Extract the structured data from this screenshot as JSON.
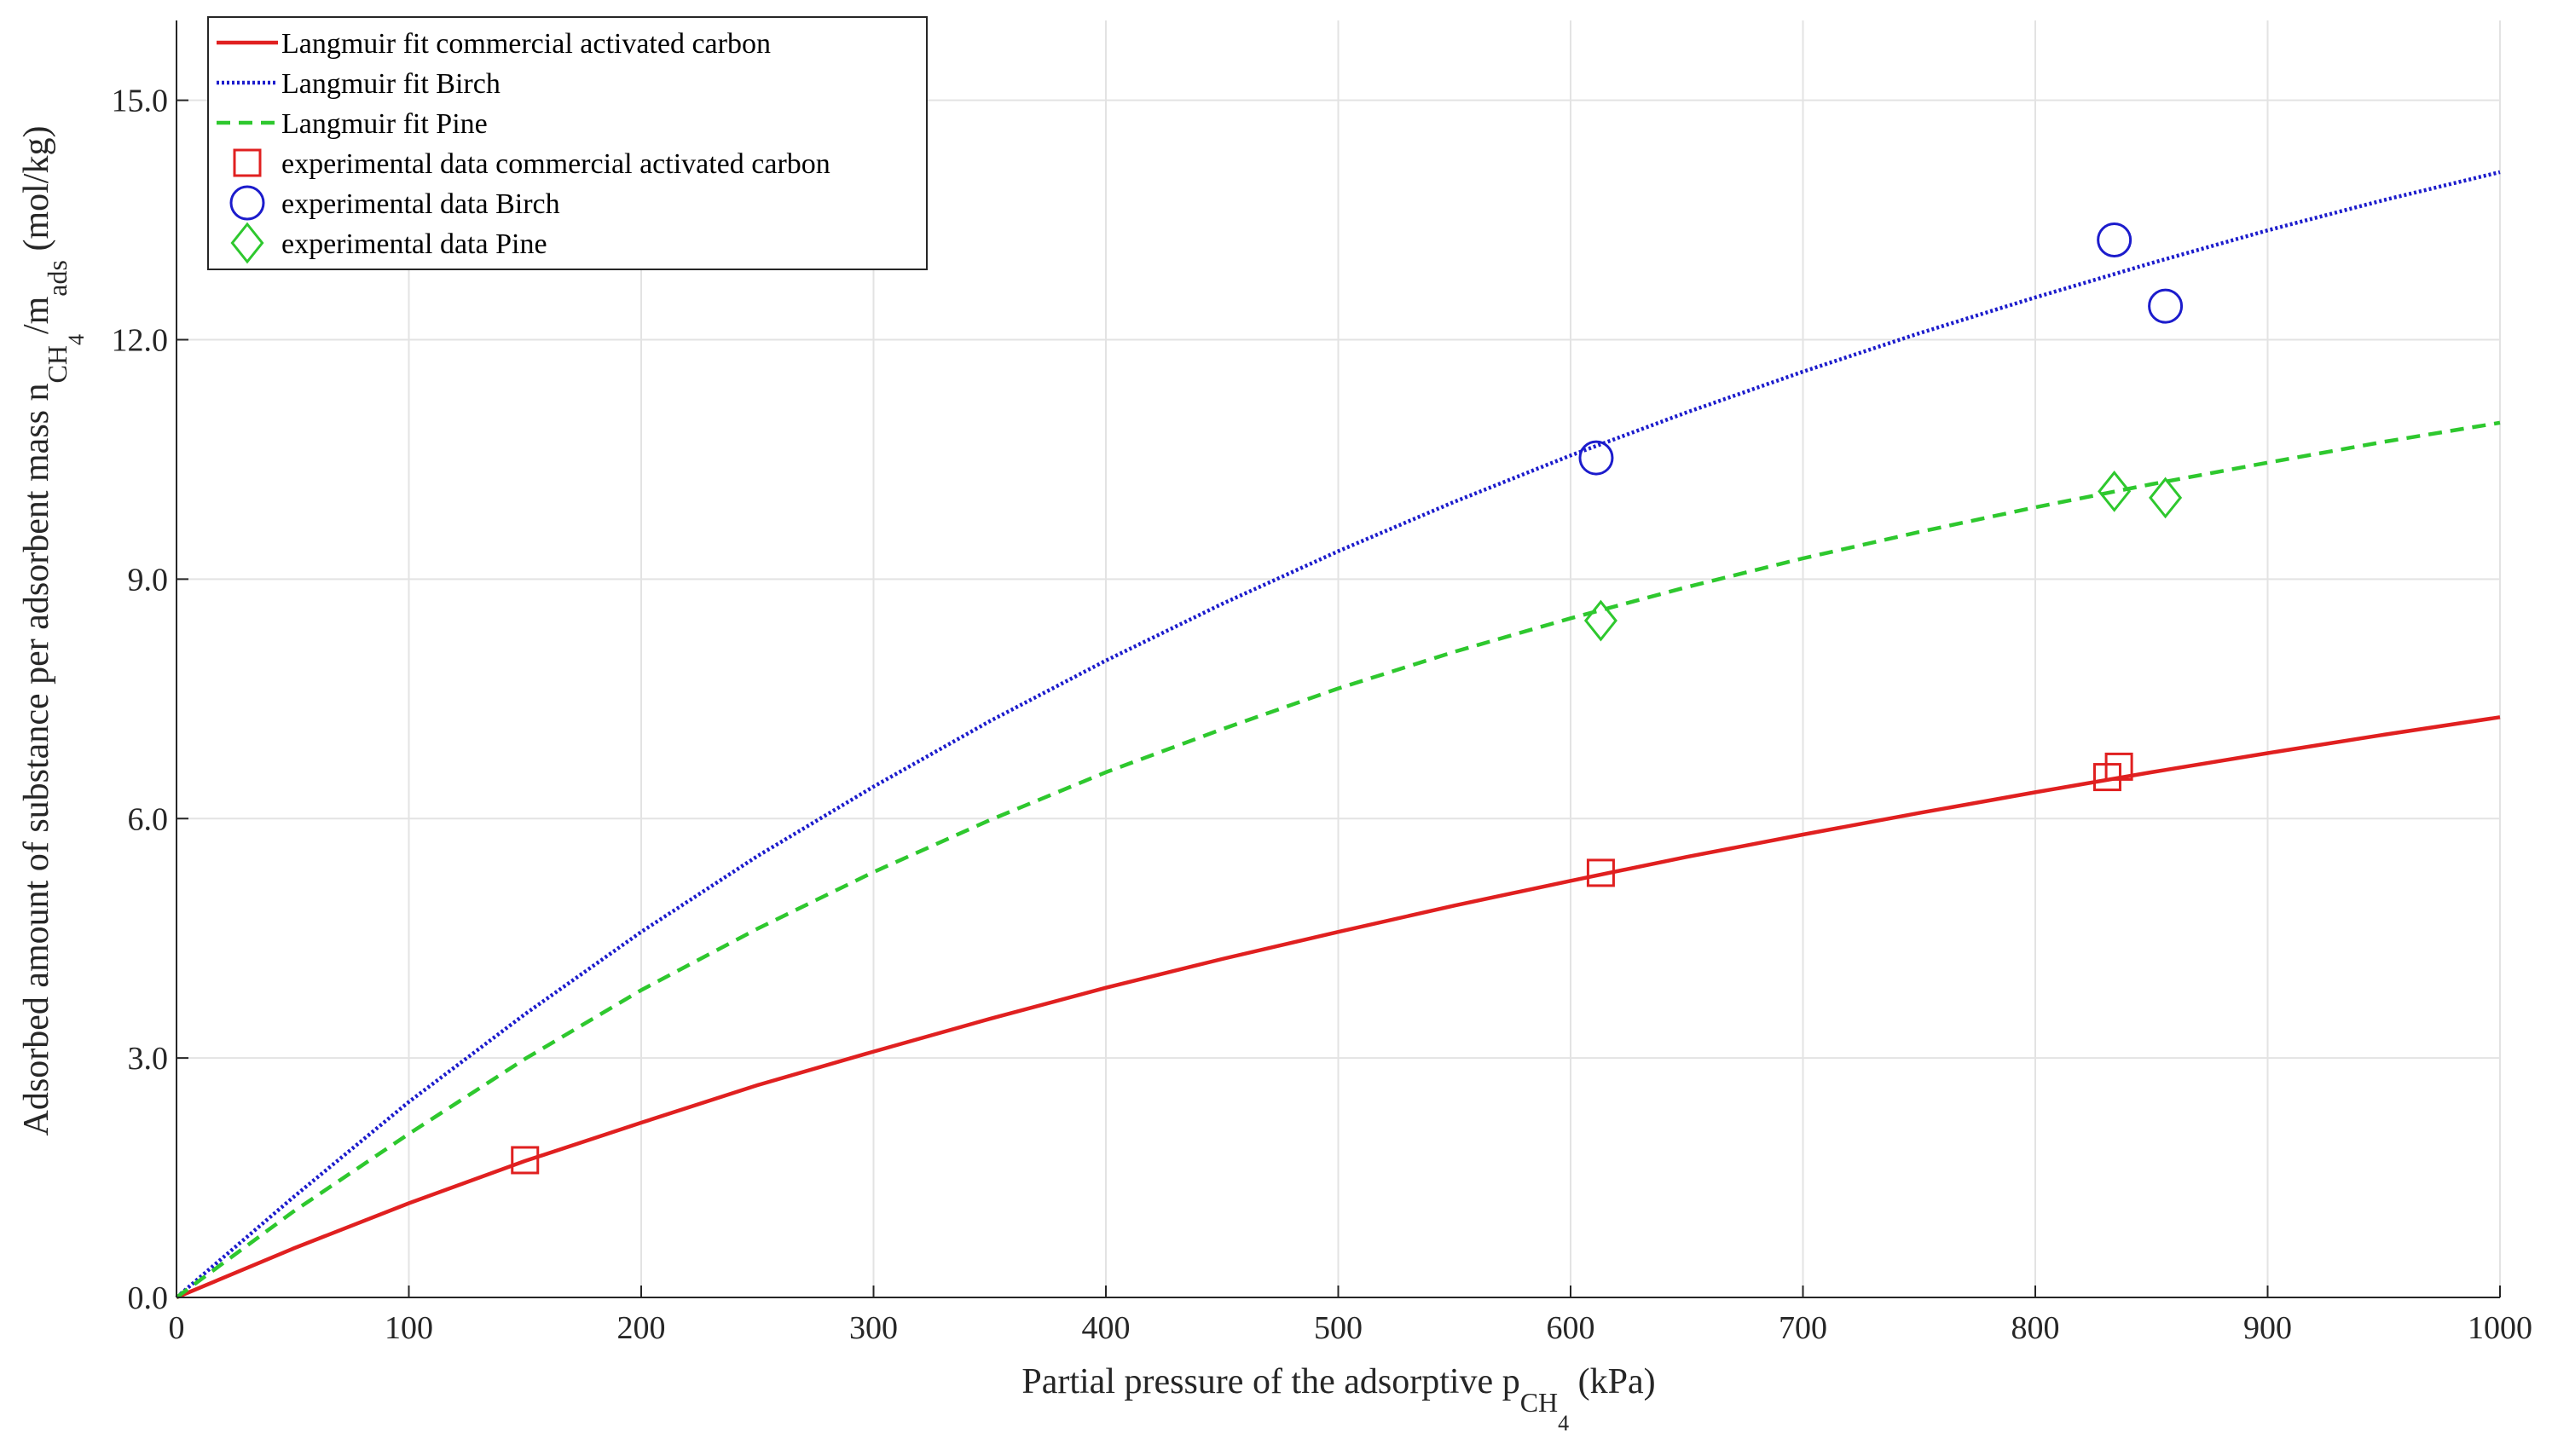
{
  "chart_data": {
    "type": "line",
    "title": "",
    "xlabel": {
      "prefix": "Partial pressure of the adsorptive p",
      "sub": "CH",
      "subsub": "4",
      "suffix": " (kPa)"
    },
    "ylabel": {
      "prefix": "Adsorbed amount of substance per adsorbent mass n",
      "sub1": "CH",
      "subsub1": "4",
      "mid": "/m",
      "sub2": "ads",
      "suffix": " (mol/kg)"
    },
    "xlim": [
      0,
      1000
    ],
    "ylim": [
      0,
      16
    ],
    "xticks": [
      0,
      100,
      200,
      300,
      400,
      500,
      600,
      700,
      800,
      900,
      1000
    ],
    "xtick_labels": [
      "0",
      "100",
      "200",
      "300",
      "400",
      "500",
      "600",
      "700",
      "800",
      "900",
      "1000"
    ],
    "yticks": [
      0,
      3,
      6,
      9,
      12,
      15
    ],
    "ytick_labels": [
      "0.0",
      "3.0",
      "6.0",
      "9.0",
      "12.0",
      "15.0"
    ],
    "grid": true,
    "legend_position": "top-left",
    "series": [
      {
        "name": "Langmuir fit commercial activated carbon",
        "kind": "line",
        "style": "solid",
        "color": "#e02020",
        "x": [
          0,
          50,
          100,
          150,
          200,
          250,
          300,
          350,
          400,
          450,
          500,
          550,
          600,
          650,
          700,
          750,
          800,
          850,
          900,
          950,
          1000
        ],
        "y": [
          0,
          0.61,
          1.18,
          1.71,
          2.19,
          2.66,
          3.08,
          3.49,
          3.88,
          4.24,
          4.58,
          4.91,
          5.22,
          5.52,
          5.8,
          6.07,
          6.33,
          6.58,
          6.82,
          7.05,
          7.27
        ]
      },
      {
        "name": "Langmuir fit Birch",
        "kind": "line",
        "style": "dotted",
        "color": "#1c1ccc",
        "x": [
          0,
          50,
          100,
          150,
          200,
          250,
          300,
          350,
          400,
          450,
          500,
          550,
          600,
          650,
          700,
          750,
          800,
          850,
          900,
          950,
          1000
        ],
        "y": [
          0,
          1.25,
          2.45,
          3.55,
          4.58,
          5.53,
          6.4,
          7.22,
          7.98,
          8.69,
          9.35,
          9.97,
          10.55,
          11.09,
          11.6,
          12.08,
          12.53,
          12.96,
          13.37,
          13.75,
          14.1
        ]
      },
      {
        "name": "Langmuir fit Pine",
        "kind": "line",
        "style": "dashed",
        "color": "#2ec82e",
        "x": [
          0,
          50,
          100,
          150,
          200,
          250,
          300,
          350,
          400,
          450,
          500,
          550,
          600,
          650,
          700,
          750,
          800,
          850,
          900,
          950,
          1000
        ],
        "y": [
          0,
          1.07,
          2.05,
          2.99,
          3.85,
          4.62,
          5.33,
          5.98,
          6.58,
          7.12,
          7.63,
          8.09,
          8.51,
          8.9,
          9.26,
          9.59,
          9.9,
          10.19,
          10.46,
          10.72,
          10.96
        ]
      },
      {
        "name": "experimental data commercial activated carbon",
        "kind": "scatter",
        "marker": "square",
        "color": "#e02020",
        "x": [
          150,
          613,
          831,
          836
        ],
        "y": [
          1.72,
          5.32,
          6.52,
          6.65
        ]
      },
      {
        "name": "experimental data Birch",
        "kind": "scatter",
        "marker": "circle",
        "color": "#1c1ccc",
        "x": [
          611,
          834,
          856
        ],
        "y": [
          10.52,
          13.25,
          12.42
        ]
      },
      {
        "name": "experimental data Pine",
        "kind": "scatter",
        "marker": "diamond",
        "color": "#2ec82e",
        "x": [
          613,
          834,
          856
        ],
        "y": [
          8.48,
          10.1,
          10.02
        ]
      }
    ]
  }
}
